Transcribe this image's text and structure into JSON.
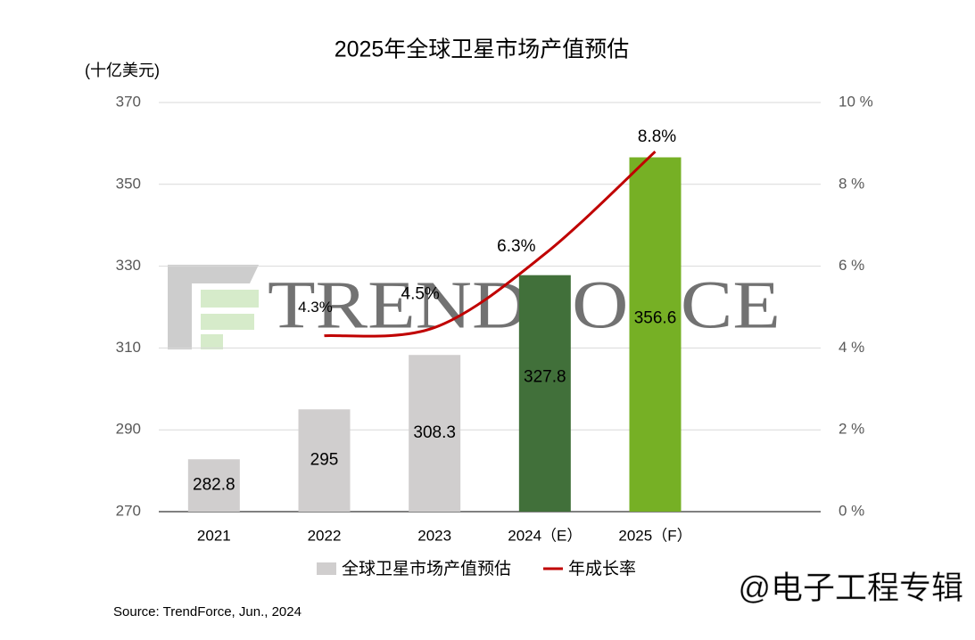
{
  "chart_data": {
    "type": "combo",
    "title": "2025年全球卫星市场产值预估",
    "y_axis_label": "(十亿美元)",
    "categories": [
      "2021",
      "2022",
      "2023",
      "2024（E）",
      "2025（F）"
    ],
    "series": [
      {
        "name": "全球卫星市场产值预估",
        "type": "bar",
        "color": "#d0cece",
        "colors": [
          "#d0cece",
          "#d0cece",
          "#d0cece",
          "#41703a",
          "#76b025"
        ],
        "values": [
          282.8,
          295,
          308.3,
          327.8,
          356.6
        ]
      },
      {
        "name": "年成长率",
        "type": "line",
        "axis": "y2",
        "color": "#c00000",
        "values": [
          null,
          4.3,
          4.5,
          6.3,
          8.8
        ],
        "value_labels": [
          null,
          "4.3%",
          "4.5%",
          "6.3%",
          "8.8%"
        ]
      }
    ],
    "ylim": [
      270,
      370
    ],
    "yticks": [
      270,
      290,
      310,
      330,
      350,
      370
    ],
    "y2lim": [
      0,
      10
    ],
    "y2ticks": [
      {
        "value": 0,
        "label": "0 %"
      },
      {
        "value": 2,
        "label": "2 %"
      },
      {
        "value": 4,
        "label": "4 %"
      },
      {
        "value": 6,
        "label": "6 %"
      },
      {
        "value": 8,
        "label": "8 %"
      },
      {
        "value": 10,
        "label": "10 %"
      }
    ],
    "grid": true,
    "legend": "bottom",
    "source": "Source: TrendForce, Jun., 2024",
    "watermark_logo": "TRENDFORCE",
    "credit": "@电子工程专辑"
  }
}
